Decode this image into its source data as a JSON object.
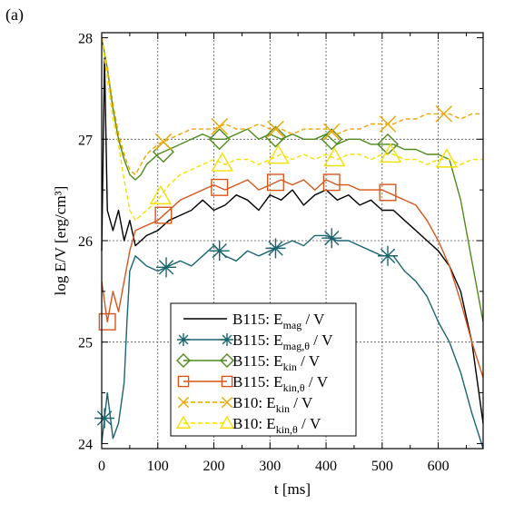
{
  "colors": {
    "emag": "#000000",
    "emag_theta": "#1a6570",
    "ekin": "#4f8a1c",
    "ekin_theta": "#d8561c",
    "b10_ekin": "#eea500",
    "b10_ekin_theta": "#f5e000",
    "grid": "#555555"
  },
  "chart_data": {
    "type": "line",
    "panel_label": "(a)",
    "xlabel": "t [ms]",
    "ylabel": "log E/V [erg/cm³]",
    "xlim": [
      0,
      680
    ],
    "ylim": [
      23.95,
      28.05
    ],
    "x_ticks": [
      0,
      100,
      200,
      300,
      400,
      500,
      600
    ],
    "y_ticks": [
      24,
      25,
      26,
      27,
      28
    ],
    "x_tick_labels": [
      "0",
      "100",
      "200",
      "300",
      "400",
      "500",
      "600"
    ],
    "y_tick_labels": [
      "24",
      "25",
      "26",
      "27",
      "28"
    ],
    "grid": true,
    "legend_position": "lower-center",
    "series": [
      {
        "name": "B115: E_mag / V",
        "legend_base": "B115: E",
        "legend_sub": "mag",
        "legend_tail": " / V",
        "color_key": "emag",
        "marker": "none",
        "dash": "solid",
        "width": 1.4,
        "x": [
          0,
          5,
          10,
          20,
          30,
          40,
          50,
          60,
          80,
          100,
          120,
          140,
          160,
          180,
          200,
          220,
          240,
          260,
          280,
          300,
          320,
          340,
          360,
          380,
          400,
          420,
          440,
          460,
          480,
          500,
          520,
          540,
          560,
          580,
          600,
          620,
          640,
          660,
          680
        ],
        "y": [
          25.9,
          27.8,
          26.3,
          26.1,
          26.3,
          26.0,
          26.2,
          25.95,
          26.05,
          26.1,
          26.2,
          26.25,
          26.3,
          26.4,
          26.3,
          26.35,
          26.45,
          26.4,
          26.3,
          26.45,
          26.4,
          26.5,
          26.35,
          26.45,
          26.5,
          26.4,
          26.45,
          26.35,
          26.4,
          26.3,
          26.3,
          26.2,
          26.1,
          26.0,
          25.9,
          25.75,
          25.5,
          25.0,
          24.2
        ]
      },
      {
        "name": "B115: E_mag,θ / V",
        "legend_base": "B115: E",
        "legend_sub": "mag,θ",
        "legend_tail": " / V",
        "color_key": "emag_theta",
        "marker": "star",
        "dash": "solid",
        "width": 1.4,
        "x": [
          0,
          10,
          20,
          30,
          40,
          45,
          50,
          60,
          80,
          100,
          120,
          140,
          160,
          180,
          200,
          220,
          240,
          260,
          280,
          300,
          320,
          340,
          360,
          380,
          400,
          420,
          440,
          460,
          480,
          500,
          520,
          540,
          560,
          580,
          600,
          620,
          640,
          660,
          680
        ],
        "y": [
          24.0,
          24.5,
          24.05,
          24.2,
          24.6,
          25.2,
          25.7,
          25.85,
          25.75,
          25.7,
          25.75,
          25.8,
          25.75,
          25.85,
          25.95,
          25.85,
          25.8,
          25.9,
          25.85,
          25.9,
          25.95,
          26.0,
          25.95,
          26.05,
          26.05,
          26.0,
          26.0,
          25.95,
          25.9,
          25.85,
          25.85,
          25.7,
          25.6,
          25.45,
          25.2,
          25.0,
          24.7,
          24.3,
          23.95
        ],
        "marker_x": [
          5,
          115,
          210,
          310,
          410,
          510
        ]
      },
      {
        "name": "B115: E_kin / V",
        "legend_base": "B115: E",
        "legend_sub": "kin",
        "legend_tail": " / V",
        "color_key": "ekin",
        "marker": "diamond",
        "dash": "solid",
        "width": 1.4,
        "x": [
          0,
          10,
          20,
          30,
          40,
          50,
          60,
          70,
          80,
          100,
          120,
          140,
          160,
          180,
          200,
          220,
          240,
          260,
          280,
          300,
          320,
          340,
          360,
          380,
          400,
          420,
          440,
          460,
          480,
          500,
          520,
          540,
          560,
          580,
          600,
          620,
          640,
          660,
          680
        ],
        "y": [
          28.0,
          27.7,
          27.3,
          27.0,
          26.8,
          26.65,
          26.6,
          26.65,
          26.75,
          26.85,
          26.9,
          26.95,
          27.0,
          27.05,
          27.0,
          27.0,
          27.05,
          27.1,
          27.0,
          27.05,
          27.0,
          27.05,
          27.0,
          27.0,
          27.05,
          26.95,
          27.0,
          27.0,
          26.95,
          26.95,
          26.95,
          26.9,
          26.9,
          26.85,
          26.85,
          26.8,
          26.4,
          25.8,
          25.2
        ],
        "marker_x": [
          110,
          210,
          310,
          410,
          510
        ]
      },
      {
        "name": "B115: E_kin,θ / V",
        "legend_base": "B115: E",
        "legend_sub": "kin,θ",
        "legend_tail": " / V",
        "color_key": "ekin_theta",
        "marker": "square",
        "dash": "solid",
        "width": 1.4,
        "x": [
          0,
          10,
          20,
          30,
          40,
          50,
          60,
          80,
          100,
          120,
          140,
          160,
          180,
          200,
          220,
          240,
          260,
          280,
          300,
          320,
          340,
          360,
          380,
          400,
          420,
          440,
          460,
          480,
          500,
          520,
          540,
          560,
          580,
          600,
          620,
          640,
          660,
          680
        ],
        "y": [
          25.6,
          25.2,
          25.5,
          25.3,
          25.6,
          25.9,
          26.1,
          26.15,
          26.2,
          26.3,
          26.4,
          26.45,
          26.5,
          26.55,
          26.5,
          26.55,
          26.6,
          26.5,
          26.55,
          26.6,
          26.55,
          26.6,
          26.5,
          26.6,
          26.55,
          26.55,
          26.5,
          26.5,
          26.5,
          26.45,
          26.4,
          26.35,
          26.2,
          26.0,
          25.75,
          25.4,
          25.0,
          24.65
        ],
        "marker_x": [
          10,
          110,
          210,
          310,
          410,
          510
        ]
      },
      {
        "name": "B10: E_kin / V",
        "legend_base": "B10: E",
        "legend_sub": "kin",
        "legend_tail": " / V",
        "color_key": "b10_ekin",
        "marker": "x",
        "dash": "dashed",
        "width": 1.4,
        "x": [
          0,
          10,
          20,
          30,
          40,
          50,
          60,
          70,
          80,
          100,
          120,
          140,
          160,
          180,
          200,
          220,
          240,
          260,
          280,
          300,
          320,
          340,
          360,
          380,
          400,
          420,
          440,
          460,
          480,
          500,
          520,
          540,
          560,
          580,
          600,
          620,
          640,
          660,
          680
        ],
        "y": [
          28.0,
          27.7,
          27.35,
          27.05,
          26.85,
          26.7,
          26.65,
          26.75,
          26.85,
          26.95,
          27.0,
          27.05,
          27.1,
          27.1,
          27.1,
          27.15,
          27.1,
          27.1,
          27.15,
          27.1,
          27.1,
          27.05,
          27.1,
          27.1,
          27.1,
          27.05,
          27.1,
          27.1,
          27.15,
          27.15,
          27.15,
          27.2,
          27.2,
          27.25,
          27.25,
          27.25,
          27.2,
          27.25,
          27.25
        ],
        "marker_x": [
          110,
          210,
          310,
          410,
          510,
          610
        ]
      },
      {
        "name": "B10: E_kin,θ / V",
        "legend_base": "B10: E",
        "legend_sub": "kin,θ",
        "legend_tail": " / V",
        "color_key": "b10_ekin_theta",
        "marker": "triangle",
        "dash": "dashed",
        "width": 1.4,
        "x": [
          0,
          10,
          20,
          30,
          40,
          50,
          60,
          80,
          100,
          120,
          140,
          160,
          180,
          200,
          220,
          240,
          260,
          280,
          300,
          320,
          340,
          360,
          380,
          400,
          420,
          440,
          460,
          480,
          500,
          520,
          540,
          560,
          580,
          600,
          620,
          640,
          660,
          680
        ],
        "y": [
          28.0,
          27.6,
          27.2,
          26.95,
          26.6,
          26.3,
          26.2,
          26.3,
          26.4,
          26.55,
          26.65,
          26.7,
          26.75,
          26.8,
          26.75,
          26.8,
          26.8,
          26.75,
          26.8,
          26.85,
          26.8,
          26.85,
          26.8,
          26.85,
          26.8,
          26.85,
          26.85,
          26.8,
          26.85,
          26.85,
          26.8,
          26.8,
          26.75,
          26.8,
          26.8,
          26.75,
          26.8,
          26.8
        ],
        "marker_x": [
          105,
          215,
          315,
          415,
          515,
          615
        ]
      }
    ]
  }
}
